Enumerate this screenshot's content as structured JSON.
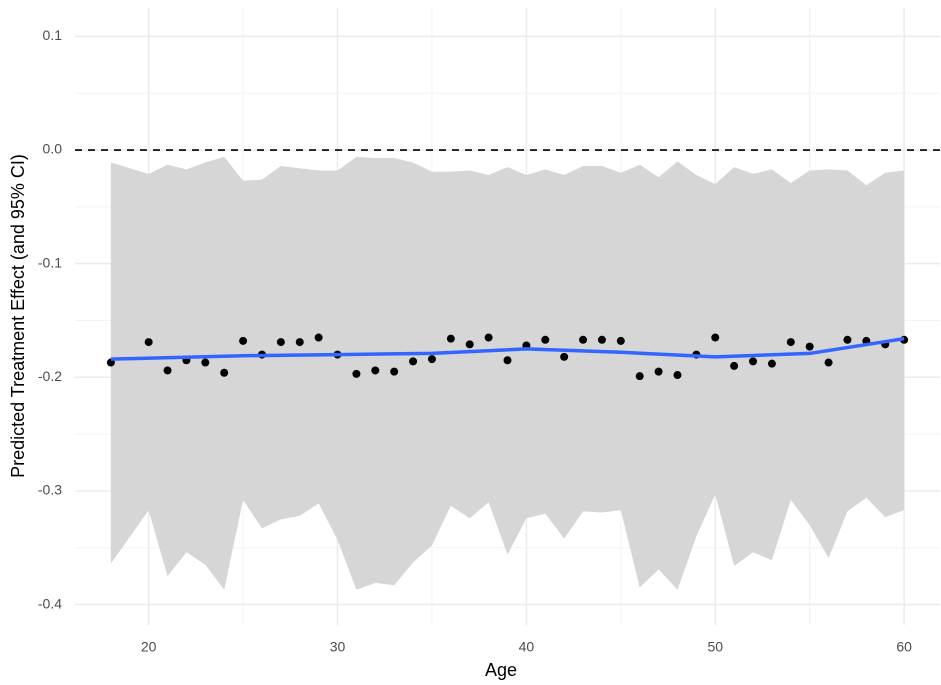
{
  "chart_data": {
    "type": "scatter",
    "x_label": "Age",
    "y_label": "Predicted Treatment Effect (and 95% CI)",
    "x": [
      18,
      20,
      21,
      22,
      23,
      24,
      25,
      26,
      27,
      28,
      29,
      30,
      31,
      32,
      33,
      34,
      35,
      36,
      37,
      38,
      39,
      40,
      41,
      42,
      43,
      44,
      45,
      46,
      47,
      48,
      49,
      50,
      51,
      52,
      53,
      54,
      55,
      56,
      57,
      58,
      59,
      60
    ],
    "values": [
      -0.187,
      -0.169,
      -0.194,
      -0.185,
      -0.187,
      -0.196,
      -0.168,
      -0.18,
      -0.169,
      -0.169,
      -0.165,
      -0.18,
      -0.197,
      -0.194,
      -0.195,
      -0.186,
      -0.184,
      -0.166,
      -0.171,
      -0.165,
      -0.185,
      -0.172,
      -0.167,
      -0.182,
      -0.167,
      -0.167,
      -0.168,
      -0.199,
      -0.195,
      -0.198,
      -0.18,
      -0.165,
      -0.19,
      -0.186,
      -0.188,
      -0.169,
      -0.173,
      -0.187,
      -0.167,
      -0.168,
      -0.171,
      -0.167
    ],
    "ci_upper": [
      -0.011,
      -0.021,
      -0.013,
      -0.017,
      -0.011,
      -0.006,
      -0.027,
      -0.026,
      -0.014,
      -0.016,
      -0.018,
      -0.018,
      -0.006,
      -0.007,
      -0.007,
      -0.011,
      -0.019,
      -0.019,
      -0.018,
      -0.022,
      -0.015,
      -0.022,
      -0.017,
      -0.022,
      -0.014,
      -0.014,
      -0.02,
      -0.013,
      -0.024,
      -0.01,
      -0.022,
      -0.03,
      -0.015,
      -0.021,
      -0.017,
      -0.029,
      -0.018,
      -0.017,
      -0.018,
      -0.031,
      -0.02,
      -0.018
    ],
    "ci_lower": [
      -0.364,
      -0.317,
      -0.375,
      -0.354,
      -0.365,
      -0.387,
      -0.308,
      -0.333,
      -0.325,
      -0.322,
      -0.311,
      -0.343,
      -0.387,
      -0.381,
      -0.383,
      -0.363,
      -0.348,
      -0.313,
      -0.324,
      -0.31,
      -0.356,
      -0.324,
      -0.32,
      -0.342,
      -0.318,
      -0.319,
      -0.317,
      -0.385,
      -0.369,
      -0.387,
      -0.34,
      -0.303,
      -0.366,
      -0.354,
      -0.361,
      -0.308,
      -0.33,
      -0.359,
      -0.318,
      -0.306,
      -0.323,
      -0.317
    ],
    "point_color": "#000000",
    "ribbon_color": "#d6d6d6",
    "smooth": {
      "x": [
        18,
        25,
        30,
        35,
        40,
        45,
        50,
        55,
        60
      ],
      "values": [
        -0.184,
        -0.181,
        -0.18,
        -0.179,
        -0.175,
        -0.178,
        -0.182,
        -0.179,
        -0.166
      ],
      "color": "#3366ff"
    },
    "hline": 0,
    "xlim": [
      16.1,
      61.9
    ],
    "ylim": [
      -0.418,
      0.125
    ],
    "xticks": [
      20,
      30,
      40,
      50,
      60
    ],
    "yticks": [
      -0.4,
      -0.3,
      -0.2,
      -0.1,
      {
        "value": 0,
        "label": "0.0"
      },
      0.1
    ],
    "grid": true
  }
}
